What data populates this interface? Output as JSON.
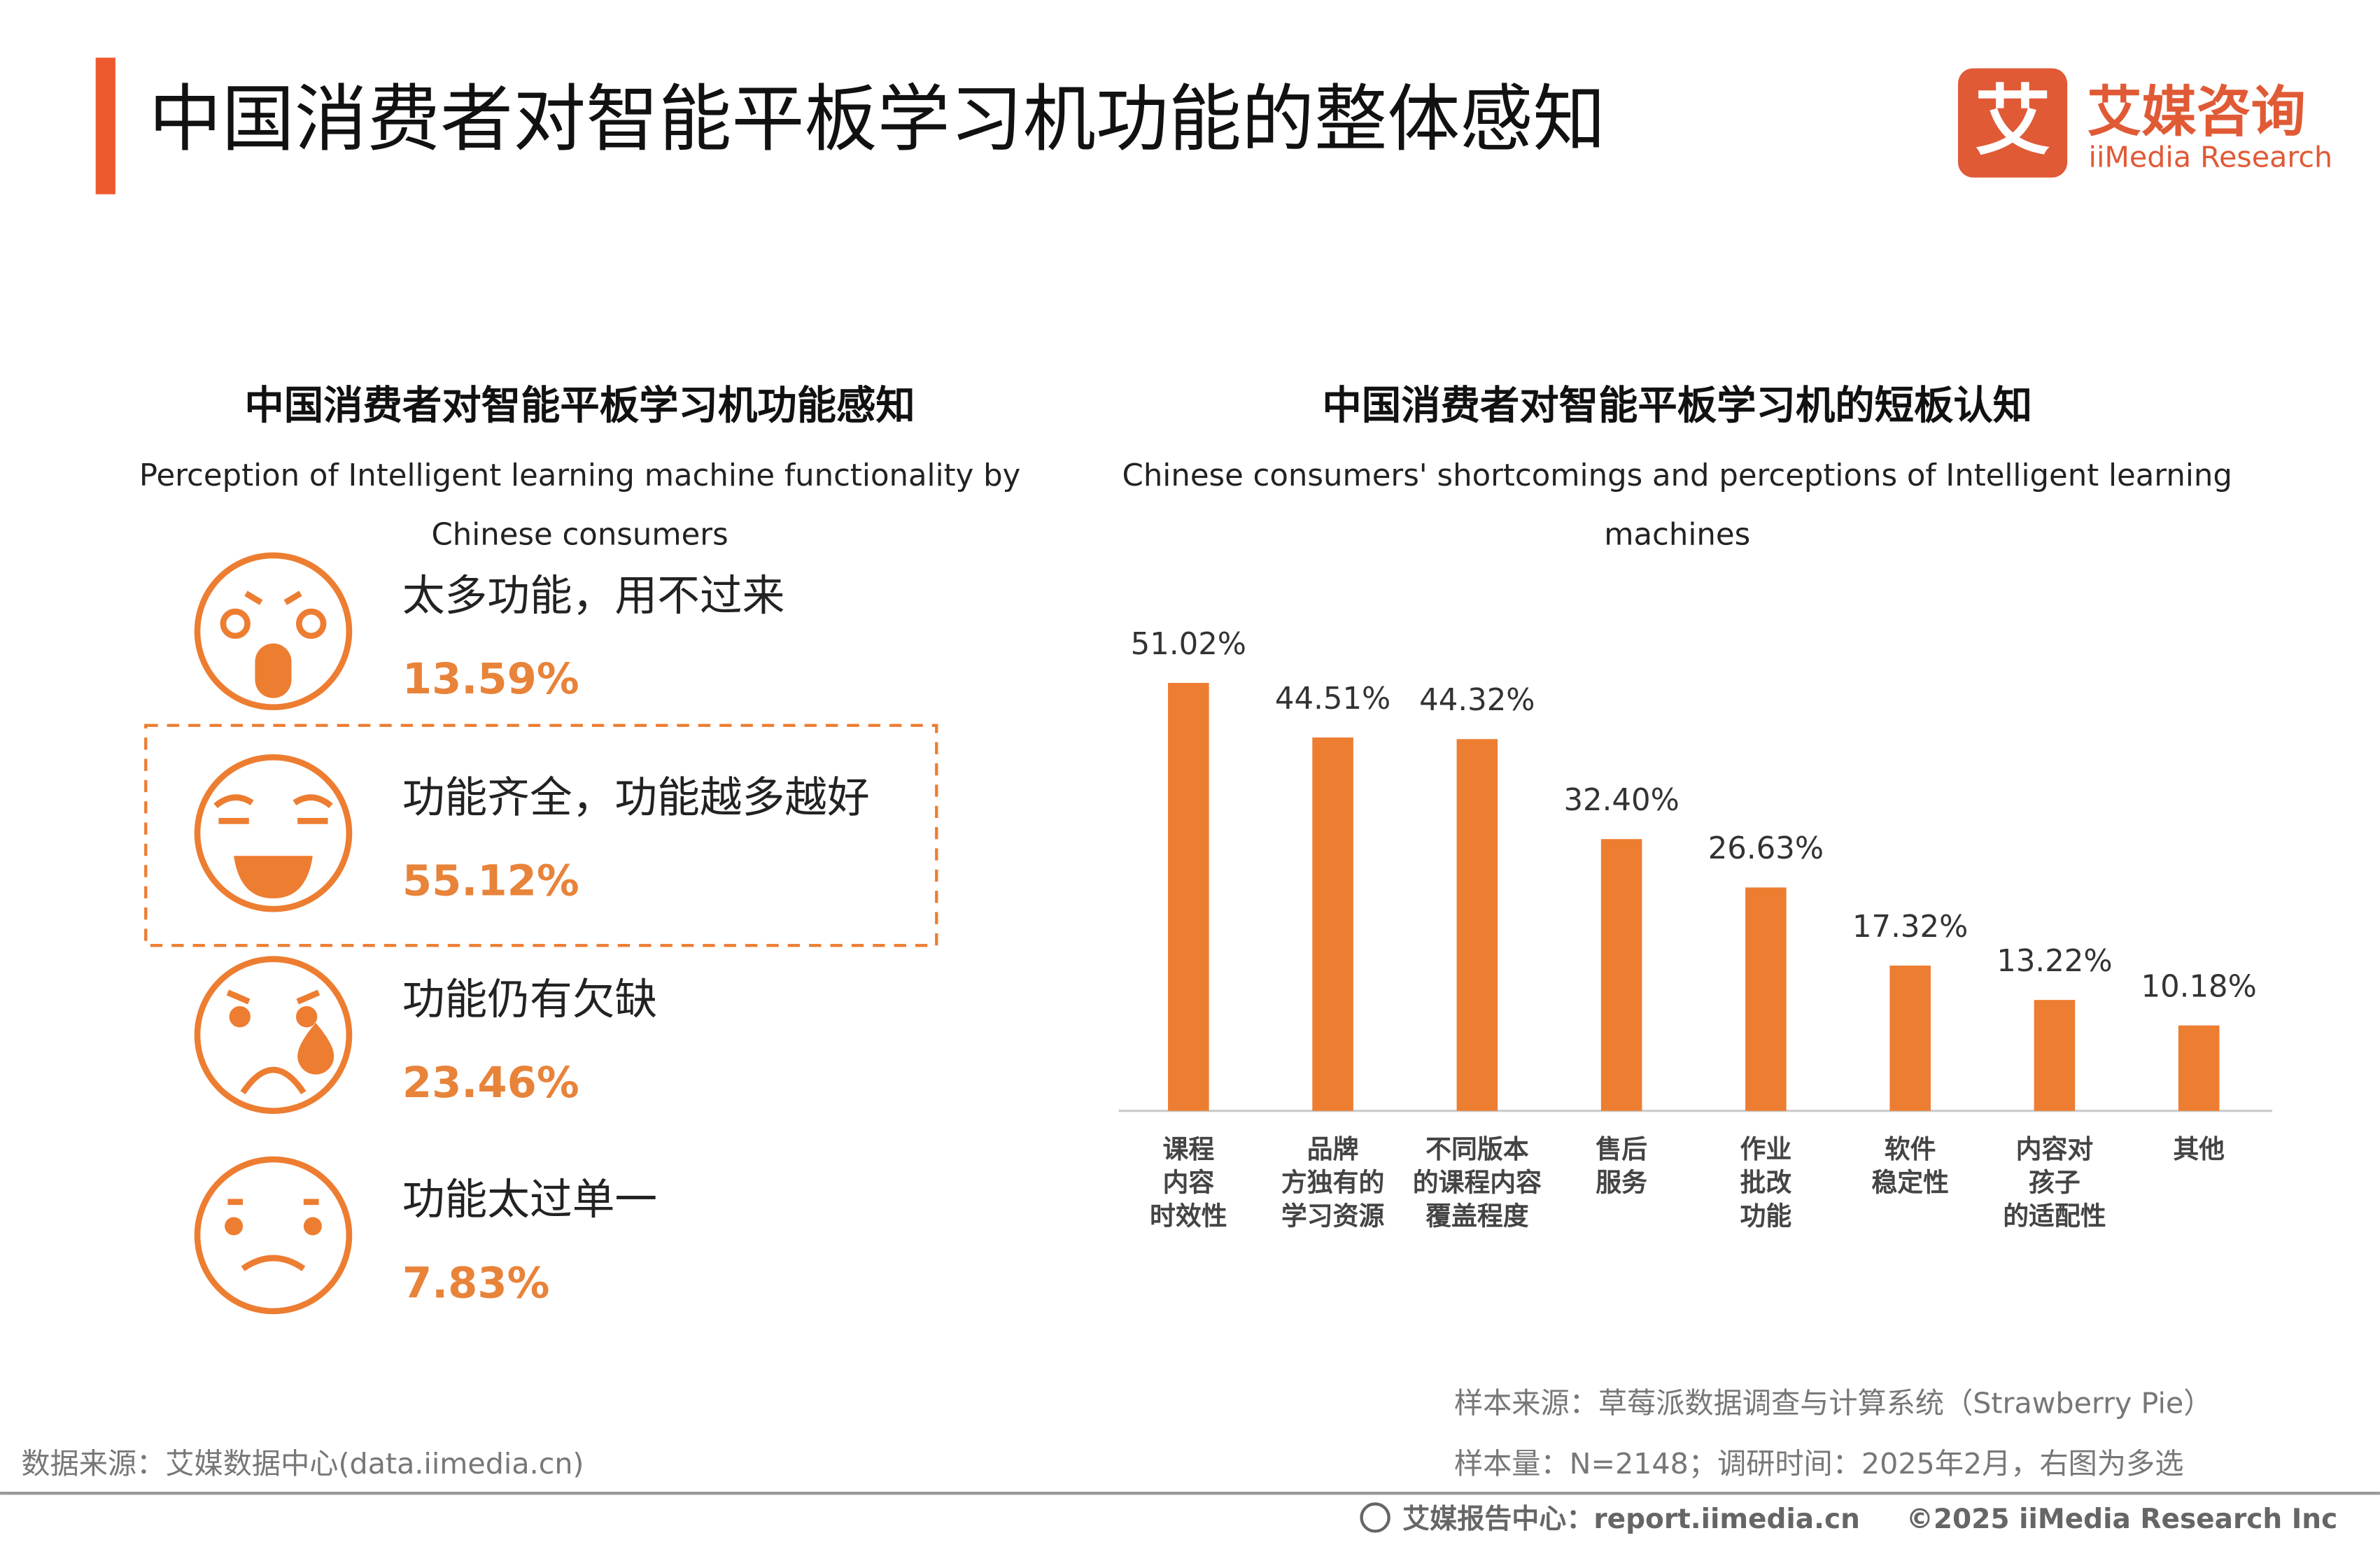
{
  "header": {
    "title": "中国消费者对智能平板学习机功能的整体感知",
    "logo_mark": "艾",
    "logo_cn": "艾媒咨询",
    "logo_en": "iiMedia Research"
  },
  "left_panel": {
    "title": "中国消费者对智能平板学习机功能感知",
    "subtitle_lines": [
      "Perception of Intelligent learning machine functionality by",
      "Chinese consumers"
    ],
    "items": [
      {
        "label": "太多功能，用不过来",
        "value": 13.59,
        "value_label": "13.59%"
      },
      {
        "label": "功能齐全，功能越多越好",
        "value": 55.12,
        "value_label": "55.12%"
      },
      {
        "label": "功能仍有欠缺",
        "value": 23.46,
        "value_label": "23.46%"
      },
      {
        "label": "功能太过单一",
        "value": 7.83,
        "value_label": "7.83%"
      }
    ]
  },
  "chart_data": {
    "type": "bar",
    "title": "中国消费者对智能平板学习机的短板认知",
    "subtitle_lines": [
      "Chinese consumers' shortcomings and perceptions of Intelligent learning",
      "machines"
    ],
    "categories": [
      [
        "课程",
        "内容",
        "时效性"
      ],
      [
        "品牌",
        "方独有的",
        "学习资源"
      ],
      [
        "不同版本",
        "的课程内容",
        "覆盖程度"
      ],
      [
        "售后",
        "服务"
      ],
      [
        "作业",
        "批改",
        "功能"
      ],
      [
        "软件",
        "稳定性"
      ],
      [
        "内容对",
        "孩子",
        "的适配性"
      ],
      [
        "其他"
      ]
    ],
    "values": [
      51.02,
      44.51,
      44.32,
      32.4,
      26.63,
      17.32,
      13.22,
      10.18
    ],
    "value_labels": [
      "51.02%",
      "44.51%",
      "44.32%",
      "32.40%",
      "26.63%",
      "17.32%",
      "13.22%",
      "10.18%"
    ],
    "color": "#ED7D31"
  },
  "footer": {
    "data_source": "数据来源：艾媒数据中心(data.iimedia.cn)",
    "sample_source": "样本来源：草莓派数据调查与计算系统（Strawberry Pie）",
    "sample_size": "样本量：N=2148；调研时间：2025年2月，右图为多选",
    "report_center": "艾媒报告中心：report.iimedia.cn",
    "copyright": "©2025  iiMedia Research  Inc"
  }
}
